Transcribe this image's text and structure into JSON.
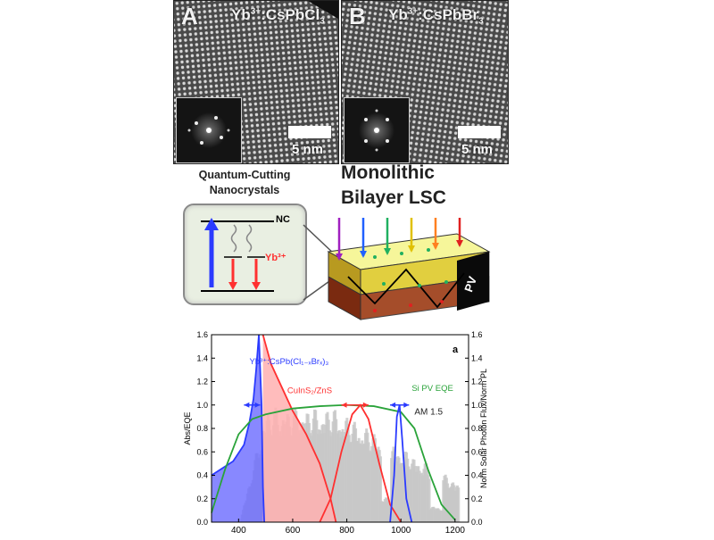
{
  "tem_panels": [
    {
      "letter": "A",
      "ion": "Yb",
      "charge": "3+",
      "host": ":CsPbCl",
      "sub": "3",
      "scale": "5 nm"
    },
    {
      "letter": "B",
      "ion": "Yb",
      "charge": "3+",
      "host": ":CsPbBr",
      "sub": "3",
      "scale": "5 nm"
    }
  ],
  "schematic": {
    "qc_title": "Quantum-Cutting Nanocrystals",
    "nc_label": "NC",
    "yb_label": "Yb³⁺",
    "lsc_title": "Monolithic Bilayer LSC",
    "pv_label": "PV",
    "incoming_ray_colors": [
      "#a020c0",
      "#2060ff",
      "#20b060",
      "#e0c000",
      "#ff8020",
      "#e02020"
    ]
  },
  "colors": {
    "blue": "#2b3bff",
    "red": "#ff3030",
    "green": "#2aa33a",
    "gray": "#c8c8c8",
    "blue_fill": "#6a6aff",
    "red_fill": "#ffb0b0"
  },
  "chart_data": {
    "type": "line",
    "panel_label": "a",
    "ylabel_left": "Abs/EQE",
    "ylabel_right": "Norm Solar Photon Flux/Norm PL",
    "xlim": [
      300,
      1250
    ],
    "ylim": [
      0,
      1.6
    ],
    "xticks": [
      400,
      600,
      800,
      1000,
      1200
    ],
    "yticks": [
      0.0,
      0.2,
      0.4,
      0.6,
      0.8,
      1.0,
      1.2,
      1.4,
      1.6
    ],
    "series": [
      {
        "name": "Yb³⁺:CsPb(Cl₁₋ₓBrₓ)₃",
        "kind": "absorption",
        "color": "#2b3bff",
        "x": [
          300,
          380,
          420,
          440,
          455,
          465,
          475,
          485,
          490,
          495
        ],
        "y": [
          0.4,
          0.52,
          0.66,
          0.85,
          1.05,
          1.3,
          1.6,
          1.0,
          0.3,
          0.0
        ]
      },
      {
        "name": "CuInS₂/ZnS",
        "kind": "absorption",
        "color": "#ff3030",
        "x": [
          490,
          520,
          560,
          600,
          650,
          700,
          740,
          760
        ],
        "y": [
          1.6,
          1.35,
          1.15,
          0.95,
          0.75,
          0.5,
          0.2,
          0.0
        ]
      },
      {
        "name": "Si PV EQE",
        "kind": "eqe",
        "color": "#2aa33a",
        "x": [
          300,
          350,
          400,
          450,
          500,
          600,
          700,
          800,
          900,
          1000,
          1050,
          1100,
          1150,
          1200
        ],
        "y": [
          0.08,
          0.45,
          0.75,
          0.88,
          0.92,
          0.97,
          0.99,
          1.0,
          0.99,
          0.94,
          0.8,
          0.45,
          0.15,
          0.02
        ]
      },
      {
        "name": "",
        "kind": "pl",
        "color": "#ff3030",
        "x": [
          700,
          740,
          780,
          820,
          850,
          880,
          920,
          960,
          1000
        ],
        "y": [
          0.0,
          0.2,
          0.6,
          0.92,
          1.0,
          0.88,
          0.5,
          0.15,
          0.0
        ]
      },
      {
        "name": "",
        "kind": "pl",
        "color": "#2b3bff",
        "x": [
          960,
          975,
          985,
          995,
          1005,
          1020,
          1040
        ],
        "y": [
          0.0,
          0.4,
          0.9,
          1.0,
          0.7,
          0.2,
          0.0
        ]
      }
    ],
    "am15_label": "AM 1.5",
    "blue_fill_region": [
      300,
      495
    ],
    "red_fill_region": [
      495,
      760
    ]
  }
}
